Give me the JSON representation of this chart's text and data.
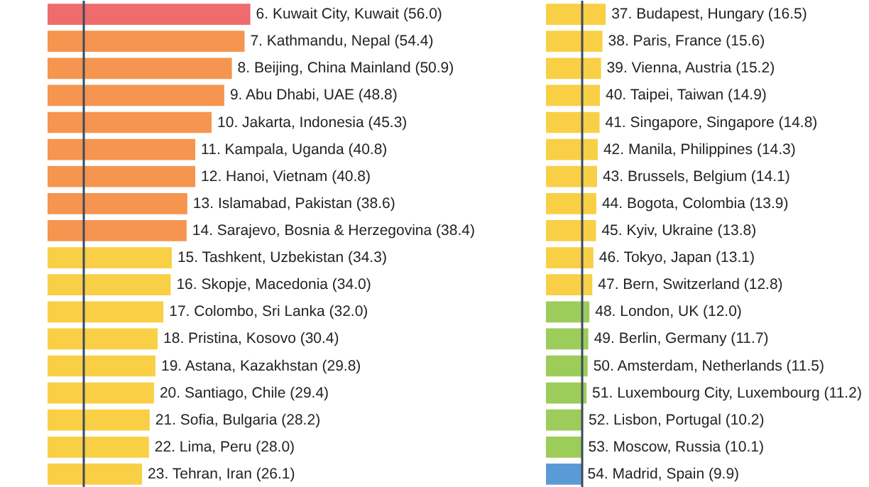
{
  "chart_data": [
    {
      "type": "bar",
      "orientation": "horizontal",
      "categories": [
        null,
        null,
        null,
        null,
        null,
        null,
        null,
        null,
        null,
        null,
        null,
        null,
        null,
        null,
        null,
        null,
        null,
        null
      ],
      "value_labels": [
        "6. Kuwait City, Kuwait (56.0)",
        "7. Kathmandu, Nepal (54.4)",
        "8. Beijing, China Mainland (50.9)",
        "9. Abu Dhabi, UAE (48.8)",
        "10. Jakarta, Indonesia (45.3)",
        "11. Kampala, Uganda (40.8)",
        "12. Hanoi, Vietnam (40.8)",
        "13. Islamabad, Pakistan (38.6)",
        "14. Sarajevo, Bosnia & Herzegovina (38.4)",
        "15. Tashkent, Uzbekistan (34.3)",
        "16. Skopje, Macedonia (34.0)",
        "17. Colombo, Sri Lanka (32.0)",
        "18. Pristina, Kosovo (30.4)",
        "19. Astana, Kazakhstan (29.8)",
        "20. Santiago, Chile (29.4)",
        "21. Sofia, Bulgaria (28.2)",
        "22. Lima, Peru (28.0)",
        "23. Tehran, Iran (26.1)"
      ],
      "values": [
        56.0,
        54.4,
        50.9,
        48.8,
        45.3,
        40.8,
        40.8,
        38.6,
        38.4,
        34.3,
        34.0,
        32.0,
        30.4,
        29.8,
        29.4,
        28.2,
        28.0,
        26.1
      ],
      "colors": [
        "#ef6b6e",
        "#f5954f",
        "#f5954f",
        "#f5954f",
        "#f5954f",
        "#f5954f",
        "#f5954f",
        "#f5954f",
        "#f5954f",
        "#f9cf45",
        "#f9cf45",
        "#f9cf45",
        "#f9cf45",
        "#f9cf45",
        "#f9cf45",
        "#f9cf45",
        "#f9cf45",
        "#f9cf45"
      ],
      "ref_lines": [
        {
          "axis": "x",
          "value": 10,
          "color": "#3d4a5c"
        }
      ]
    },
    {
      "type": "bar",
      "orientation": "horizontal",
      "categories": [
        null,
        null,
        null,
        null,
        null,
        null,
        null,
        null,
        null,
        null,
        null,
        null,
        null,
        null,
        null,
        null,
        null,
        null
      ],
      "value_labels": [
        "37. Budapest, Hungary (16.5)",
        "38. Paris, France (15.6)",
        "39. Vienna, Austria (15.2)",
        "40. Taipei, Taiwan (14.9)",
        "41. Singapore, Singapore (14.8)",
        "42. Manila, Philippines (14.3)",
        "43. Brussels, Belgium (14.1)",
        "44. Bogota, Colombia (13.9)",
        "45. Kyiv, Ukraine (13.8)",
        "46. Tokyo, Japan (13.1)",
        "47. Bern, Switzerland (12.8)",
        "48. London, UK (12.0)",
        "49. Berlin, Germany (11.7)",
        "50. Amsterdam, Netherlands (11.5)",
        "51. Luxembourg City, Luxembourg (11.2)",
        "52. Lisbon, Portugal (10.2)",
        "53. Moscow, Russia (10.1)",
        "54. Madrid, Spain (9.9)"
      ],
      "values": [
        16.5,
        15.6,
        15.2,
        14.9,
        14.8,
        14.3,
        14.1,
        13.9,
        13.8,
        13.1,
        12.8,
        12.0,
        11.7,
        11.5,
        11.2,
        10.2,
        10.1,
        9.9
      ],
      "colors": [
        "#f9cf45",
        "#f9cf45",
        "#f9cf45",
        "#f9cf45",
        "#f9cf45",
        "#f9cf45",
        "#f9cf45",
        "#f9cf45",
        "#f9cf45",
        "#f9cf45",
        "#f9cf45",
        "#9ccc5a",
        "#9ccc5a",
        "#9ccc5a",
        "#9ccc5a",
        "#9ccc5a",
        "#9ccc5a",
        "#5b9bd5"
      ],
      "ref_lines": [
        {
          "axis": "x",
          "value": 10,
          "color": "#3d4a5c"
        }
      ]
    }
  ]
}
